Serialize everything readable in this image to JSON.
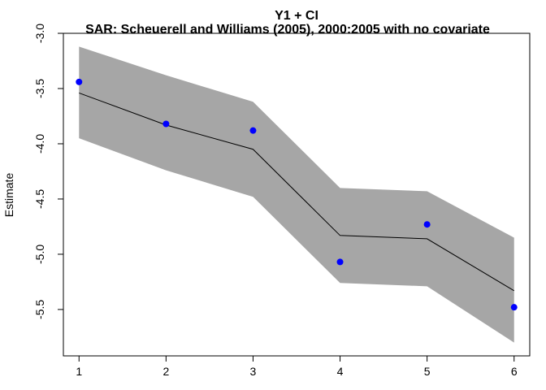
{
  "chart_data": {
    "type": "line",
    "title": "Y1 + CI",
    "subtitle": "SAR: Scheuerell and Williams (2005), 2000:2005 with no covariate",
    "xlabel": "",
    "ylabel": "Estimate",
    "x": [
      1,
      2,
      3,
      4,
      5,
      6
    ],
    "xlim": [
      0.82,
      6.18
    ],
    "ylim": [
      -5.92,
      -3.0
    ],
    "x_ticks": [
      1,
      2,
      3,
      4,
      5,
      6
    ],
    "y_ticks": [
      -3.0,
      -3.5,
      -4.0,
      -4.5,
      -5.0,
      -5.5
    ],
    "y_tick_labels": [
      "-3.0",
      "-3.5",
      "-4.0",
      "-4.5",
      "-5.0",
      "-5.5"
    ],
    "grid": false,
    "series": [
      {
        "type": "line",
        "values": [
          -3.54,
          -3.83,
          -4.05,
          -4.83,
          -4.86,
          -5.33
        ],
        "color": "#000000"
      },
      {
        "type": "scatter",
        "values": [
          -3.44,
          -3.82,
          -3.88,
          -5.07,
          -4.73,
          -5.48
        ],
        "color": "#0000ff"
      },
      {
        "type": "band",
        "upper": [
          -3.12,
          -3.38,
          -3.62,
          -4.4,
          -4.43,
          -4.85
        ],
        "lower": [
          -3.95,
          -4.24,
          -4.48,
          -5.26,
          -5.29,
          -5.8
        ],
        "color": "#a6a6a6"
      }
    ]
  }
}
